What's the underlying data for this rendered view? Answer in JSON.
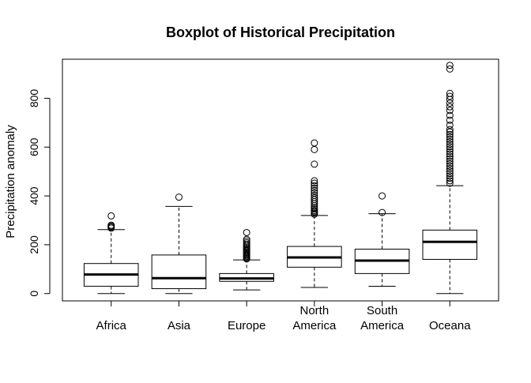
{
  "chart_data": {
    "type": "boxplot",
    "title": "Boxplot of Historical Precipitation",
    "xlabel": "",
    "ylabel": "Precipitation anomaly",
    "ylim": [
      -30,
      960
    ],
    "yticks": [
      0,
      200,
      400,
      600,
      800
    ],
    "grid": false,
    "categories": [
      {
        "label_lines": [
          "Africa"
        ],
        "min": 0,
        "q1": 30,
        "median": 78,
        "q3": 123,
        "max": 262,
        "outliers": [
          268,
          272,
          276,
          280,
          318
        ]
      },
      {
        "label_lines": [
          "Asia"
        ],
        "min": 0,
        "q1": 20,
        "median": 63,
        "q3": 158,
        "max": 357,
        "outliers": [
          395
        ]
      },
      {
        "label_lines": [
          "Europe"
        ],
        "min": 15,
        "q1": 50,
        "median": 62,
        "q3": 82,
        "max": 138,
        "outliers": [
          142,
          146,
          150,
          154,
          158,
          162,
          166,
          170,
          175,
          180,
          185,
          190,
          196,
          202,
          208,
          215,
          222,
          250
        ]
      },
      {
        "label_lines": [
          "North",
          "America"
        ],
        "min": 25,
        "q1": 108,
        "median": 148,
        "q3": 193,
        "max": 320,
        "outliers": [
          325,
          330,
          335,
          340,
          346,
          352,
          360,
          368,
          376,
          385,
          393,
          402,
          412,
          422,
          432,
          442,
          452,
          462,
          530,
          590,
          617
        ]
      },
      {
        "label_lines": [
          "South",
          "America"
        ],
        "min": 30,
        "q1": 82,
        "median": 135,
        "q3": 182,
        "max": 327,
        "outliers": [
          332,
          400
        ]
      },
      {
        "label_lines": [
          "Oceana"
        ],
        "min": 0,
        "q1": 140,
        "median": 212,
        "q3": 260,
        "max": 442,
        "outliers": [
          452,
          462,
          472,
          482,
          492,
          502,
          512,
          522,
          532,
          542,
          552,
          562,
          572,
          582,
          592,
          602,
          612,
          622,
          632,
          642,
          652,
          662,
          672,
          690,
          710,
          730,
          750,
          765,
          780,
          795,
          808,
          820,
          920,
          935
        ]
      }
    ]
  }
}
